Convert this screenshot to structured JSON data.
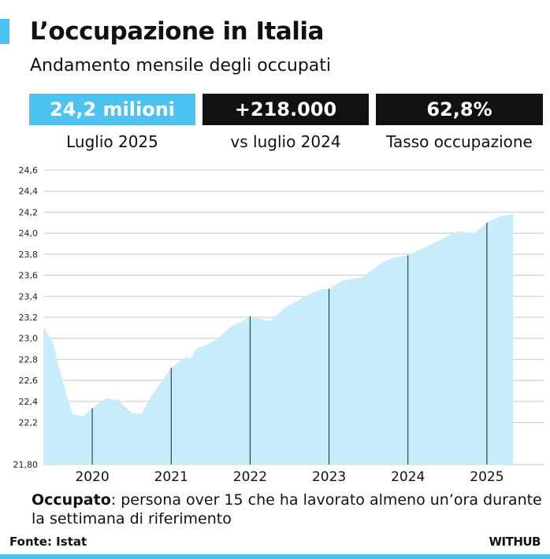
{
  "header": {
    "title": "L’occupazione in Italia",
    "subtitle": "Andamento mensile degli occupati"
  },
  "kpis": [
    {
      "value": "24,2 milioni",
      "label": "Luglio 2025",
      "color": "#4cc3f0"
    },
    {
      "value": "+218.000",
      "label": "vs luglio 2024",
      "color": "#111111"
    },
    {
      "value": "62,8%",
      "label": "Tasso occupazione",
      "color": "#111111"
    }
  ],
  "chart_data": {
    "type": "area",
    "ylim": [
      21.8,
      24.6
    ],
    "yticks": [
      "24,6",
      "24,4",
      "24,2",
      "24,0",
      "23,8",
      "23,6",
      "23,4",
      "23,2",
      "23,0",
      "22,8",
      "22,6",
      "22,4",
      "22,2",
      "21,80"
    ],
    "ytick_values": [
      24.6,
      24.4,
      24.2,
      24.0,
      23.8,
      23.6,
      23.4,
      23.2,
      23.0,
      22.8,
      22.6,
      22.4,
      22.2,
      21.8
    ],
    "xticks": [
      "2020",
      "2021",
      "2022",
      "2023",
      "2024",
      "2025"
    ],
    "xtick_values": [
      2020,
      2021,
      2022,
      2023,
      2024,
      2025
    ],
    "xlim": [
      2019.38,
      2025.72
    ],
    "grid": true,
    "fill_color": "#c8ecfb",
    "series": [
      {
        "x": [
          2019.38,
          2019.5,
          2019.62,
          2019.75,
          2019.88,
          2019.96,
          2020.04,
          2020.17,
          2020.33,
          2020.5,
          2020.62,
          2020.75,
          2020.88,
          2021.0,
          2021.17,
          2021.25,
          2021.33,
          2021.42,
          2021.58,
          2021.75,
          2021.92,
          2022.0,
          2022.12,
          2022.25,
          2022.42,
          2022.58,
          2022.75,
          2022.92,
          2023.0,
          2023.17,
          2023.42,
          2023.67,
          2023.83,
          2024.0,
          2024.17,
          2024.42,
          2024.58,
          2024.67,
          2024.83,
          2025.0,
          2025.17,
          2025.33
        ],
        "values": [
          23.11,
          22.96,
          22.6,
          22.28,
          22.26,
          22.31,
          22.36,
          22.43,
          22.41,
          22.29,
          22.28,
          22.45,
          22.59,
          22.72,
          22.82,
          22.81,
          22.91,
          22.93,
          22.99,
          23.11,
          23.17,
          23.21,
          23.19,
          23.16,
          23.28,
          23.35,
          23.42,
          23.47,
          23.47,
          23.55,
          23.58,
          23.72,
          23.77,
          23.79,
          23.85,
          23.94,
          24.0,
          24.02,
          23.99,
          24.1,
          24.16,
          24.18
        ]
      }
    ]
  },
  "footnote": {
    "term": "Occupato",
    "text": ": persona over 15 che ha lavorato almeno un’ora durante la settimana di riferimento"
  },
  "source": "Fonte: Istat",
  "logo": "WITHUB"
}
